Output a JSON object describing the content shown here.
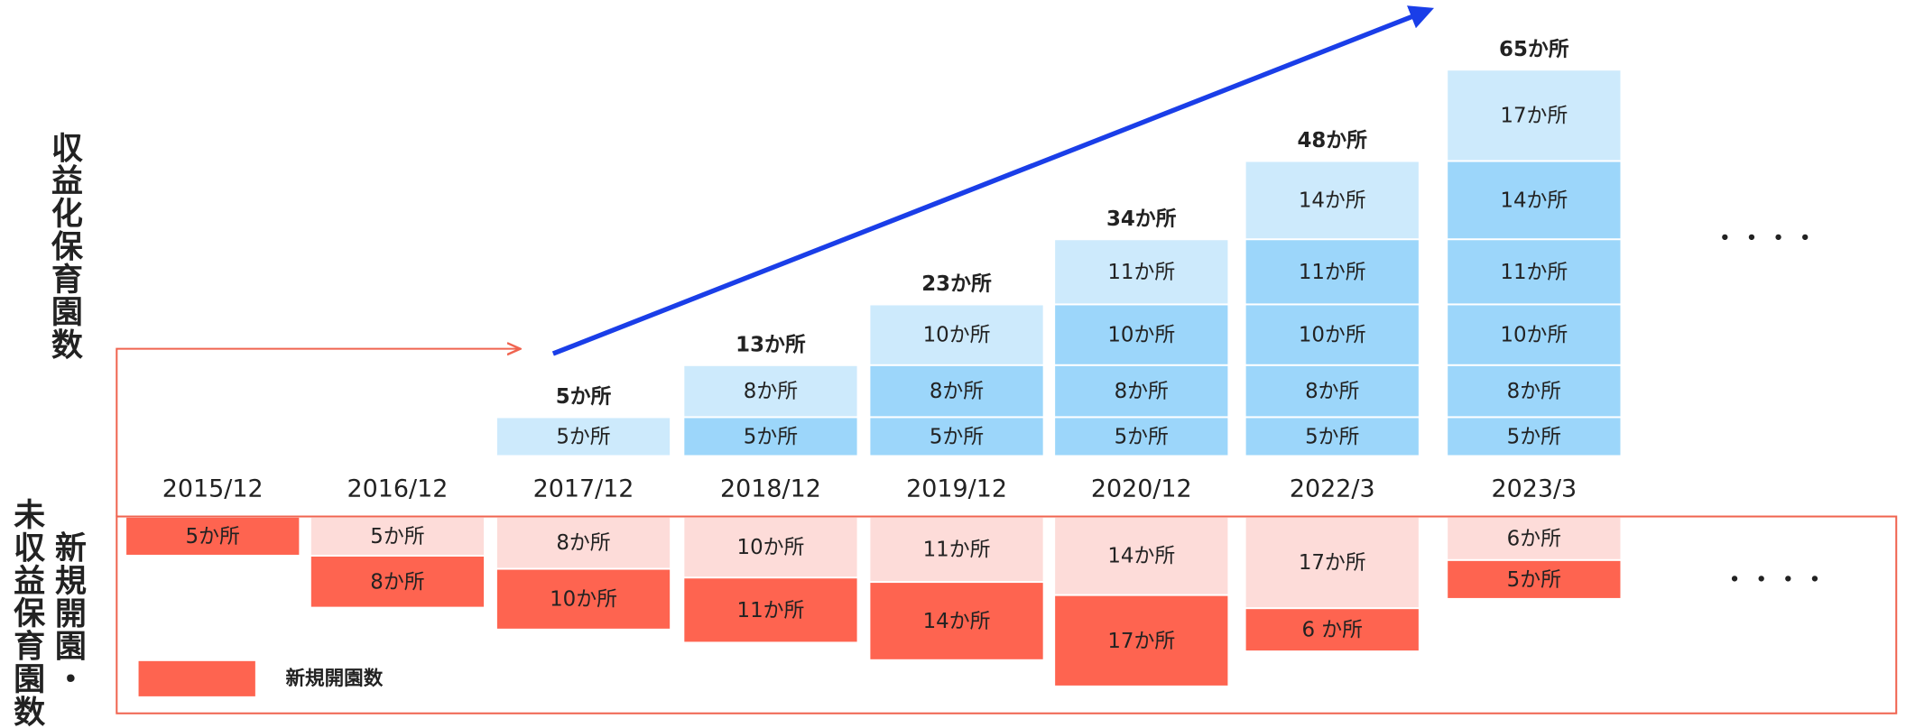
{
  "y_label_top": "収益化保育園数",
  "y_label_bottom_1": "新規開園・",
  "y_label_bottom_2": "未収益保育園数",
  "legend": "新規開園数",
  "ellipsis": "・・・・",
  "columns": [
    {
      "date": "2015/12",
      "total": null,
      "top": [],
      "bottom": [
        "5か所"
      ]
    },
    {
      "date": "2016/12",
      "total": null,
      "top": [],
      "bottom": [
        "5か所",
        "8か所"
      ]
    },
    {
      "date": "2017/12",
      "total": "5か所",
      "top": [
        "5か所"
      ],
      "bottom": [
        "8か所",
        "10か所"
      ]
    },
    {
      "date": "2018/12",
      "total": "13か所",
      "top": [
        "5か所",
        "8か所"
      ],
      "bottom": [
        "10か所",
        "11か所"
      ]
    },
    {
      "date": "2019/12",
      "total": "23か所",
      "top": [
        "5か所",
        "8か所",
        "10か所"
      ],
      "bottom": [
        "11か所",
        "14か所"
      ]
    },
    {
      "date": "2020/12",
      "total": "34か所",
      "top": [
        "5か所",
        "8か所",
        "10か所",
        "11か所"
      ],
      "bottom": [
        "14か所",
        "17か所"
      ]
    },
    {
      "date": "2022/3",
      "total": "48か所",
      "top": [
        "5か所",
        "8か所",
        "10か所",
        "11か所",
        "14か所"
      ],
      "bottom": [
        "17か所",
        "6 か所"
      ]
    },
    {
      "date": "2023/3",
      "total": "65か所",
      "top": [
        "5か所",
        "8か所",
        "10か所",
        "11か所",
        "14か所",
        "17か所"
      ],
      "bottom": [
        "6か所",
        "5か所"
      ]
    }
  ]
}
